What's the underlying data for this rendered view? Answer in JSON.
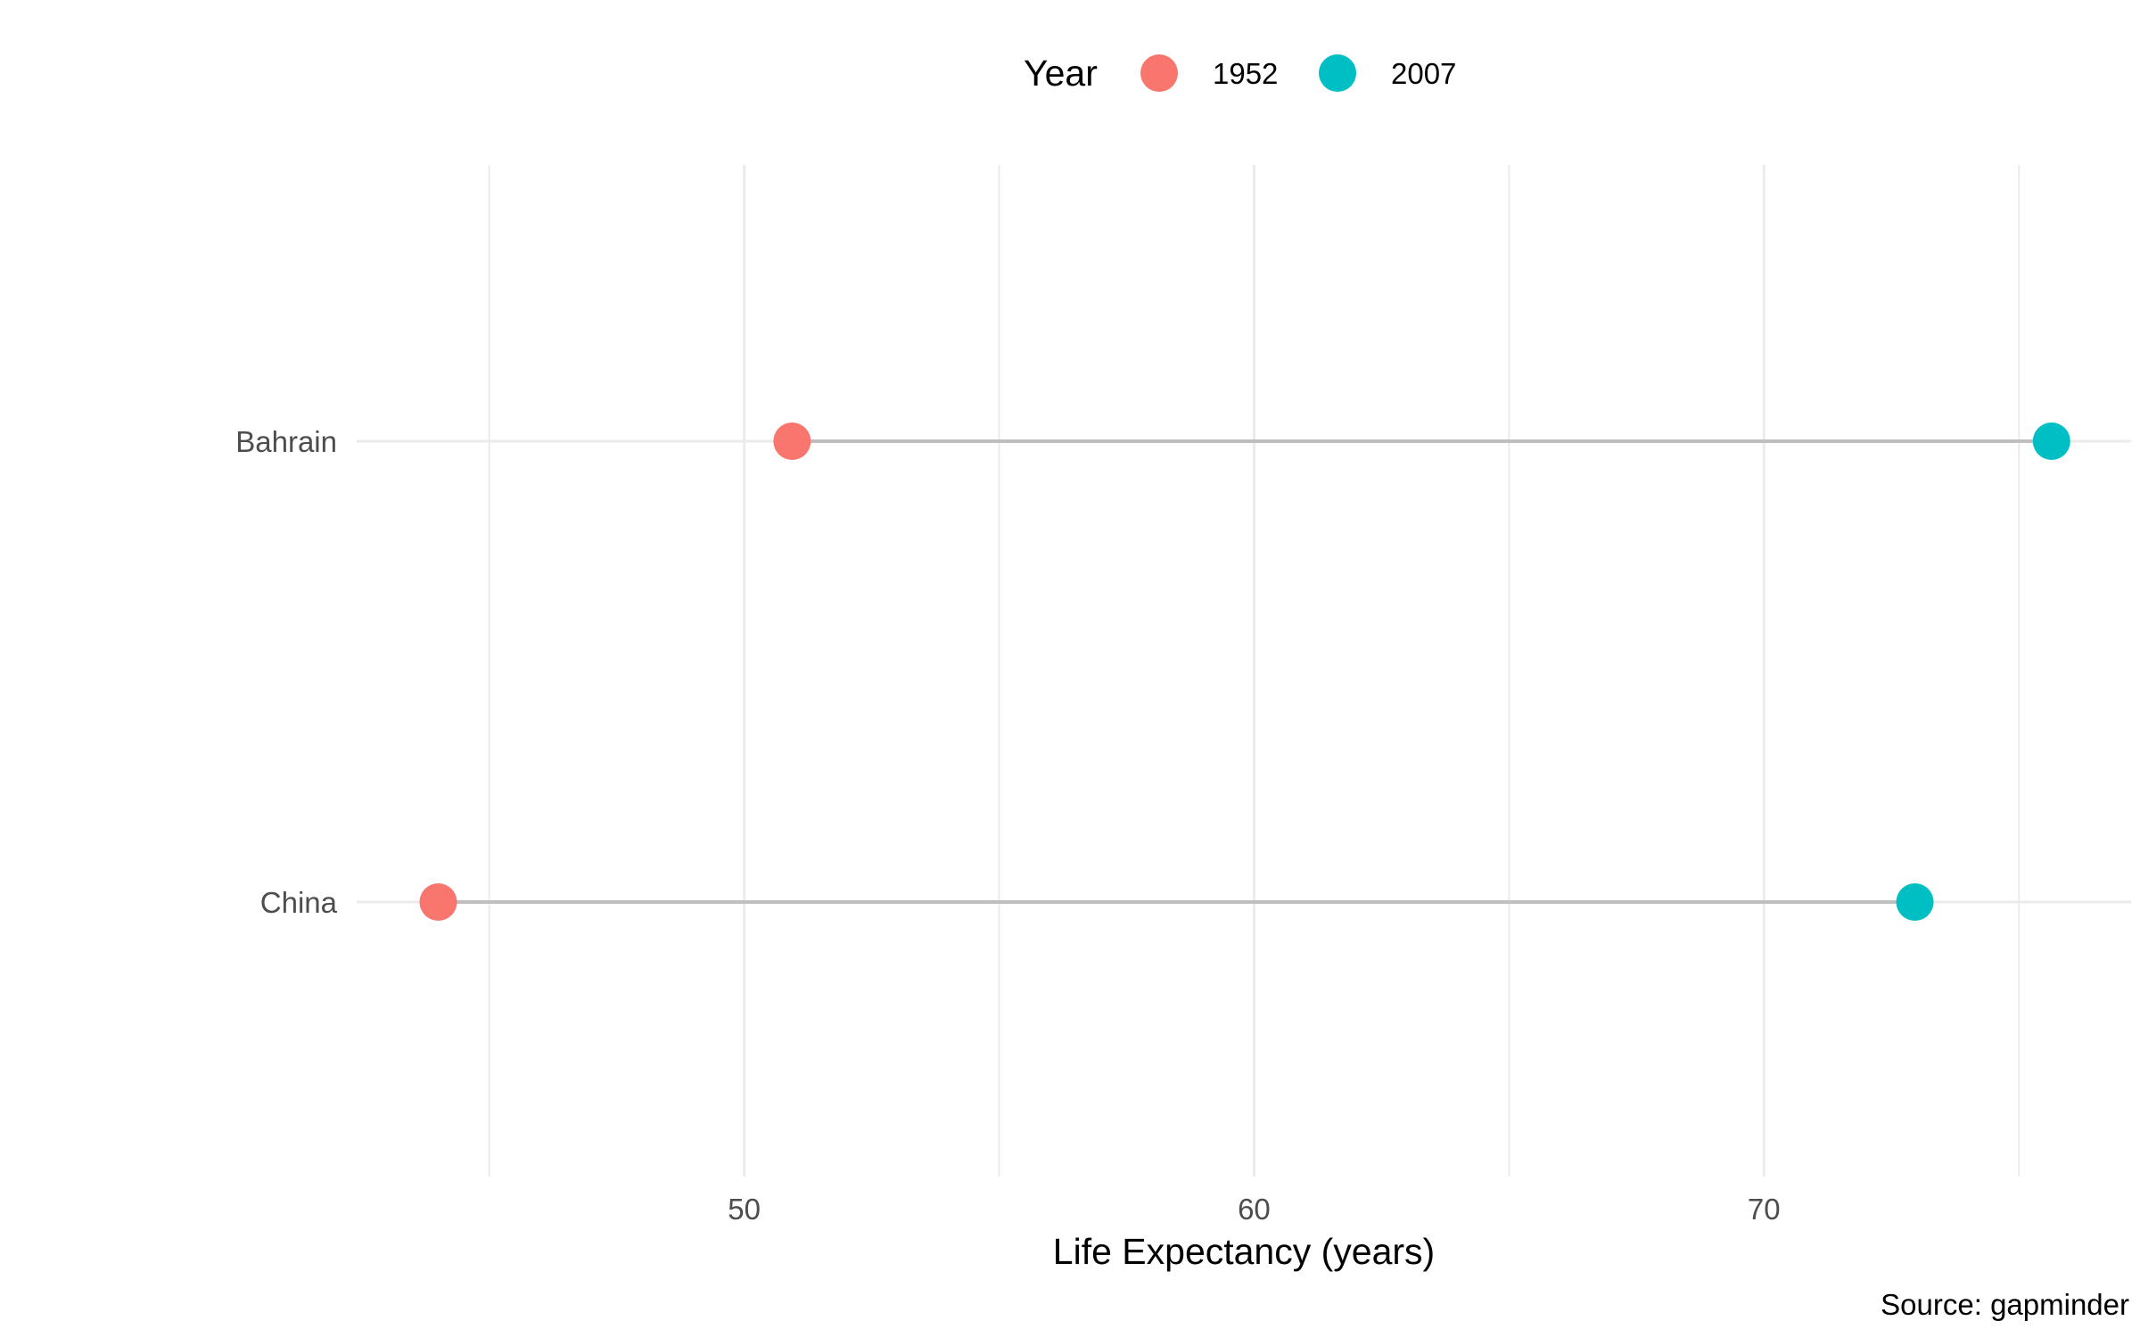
{
  "chart_data": {
    "type": "dumbbell",
    "title": "",
    "xlabel": "Life Expectancy (years)",
    "ylabel": "",
    "xlim": [
      42.4,
      77.2
    ],
    "x_ticks": [
      50,
      60,
      70
    ],
    "x_minor_grid": [
      45,
      55,
      65,
      75
    ],
    "categories": [
      "Bahrain",
      "China"
    ],
    "legend": {
      "title": "Year",
      "position": "top",
      "entries": [
        {
          "label": "1952",
          "color": "#F8766D"
        },
        {
          "label": "2007",
          "color": "#00BFC4"
        }
      ]
    },
    "series": [
      {
        "name": "1952",
        "color": "#F8766D",
        "values": [
          50.94,
          44.0
        ]
      },
      {
        "name": "2007",
        "color": "#00BFC4",
        "values": [
          75.64,
          72.96
        ]
      }
    ],
    "segment_color": "#bfbfbf",
    "grid": true,
    "caption": "Source: gapminder"
  }
}
